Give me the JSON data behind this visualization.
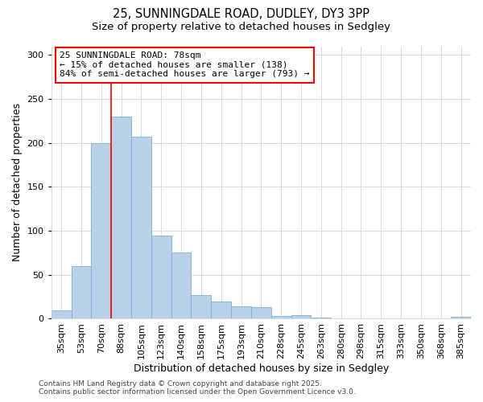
{
  "title_line1": "25, SUNNINGDALE ROAD, DUDLEY, DY3 3PP",
  "title_line2": "Size of property relative to detached houses in Sedgley",
  "xlabel": "Distribution of detached houses by size in Sedgley",
  "ylabel": "Number of detached properties",
  "categories": [
    "35sqm",
    "53sqm",
    "70sqm",
    "88sqm",
    "105sqm",
    "123sqm",
    "140sqm",
    "158sqm",
    "175sqm",
    "193sqm",
    "210sqm",
    "228sqm",
    "245sqm",
    "263sqm",
    "280sqm",
    "298sqm",
    "315sqm",
    "333sqm",
    "350sqm",
    "368sqm",
    "385sqm"
  ],
  "values": [
    10,
    60,
    200,
    230,
    207,
    95,
    75,
    27,
    20,
    14,
    13,
    3,
    4,
    1,
    0,
    0,
    0,
    0,
    0,
    0,
    2
  ],
  "bar_color": "#b8d0e8",
  "bar_edge_color": "#7aafd4",
  "red_line_x": 2.5,
  "ylim": [
    0,
    310
  ],
  "yticks": [
    0,
    50,
    100,
    150,
    200,
    250,
    300
  ],
  "annotation_text": "25 SUNNINGDALE ROAD: 78sqm\n← 15% of detached houses are smaller (138)\n84% of semi-detached houses are larger (793) →",
  "footer_line1": "Contains HM Land Registry data © Crown copyright and database right 2025.",
  "footer_line2": "Contains public sector information licensed under the Open Government Licence v3.0.",
  "bg_color": "#ffffff",
  "plot_bg_color": "#ffffff",
  "grid_color": "#d0dce8",
  "title_fontsize": 10.5,
  "subtitle_fontsize": 9.5,
  "axis_label_fontsize": 9,
  "tick_fontsize": 8,
  "annotation_fontsize": 8,
  "footer_fontsize": 6.5
}
